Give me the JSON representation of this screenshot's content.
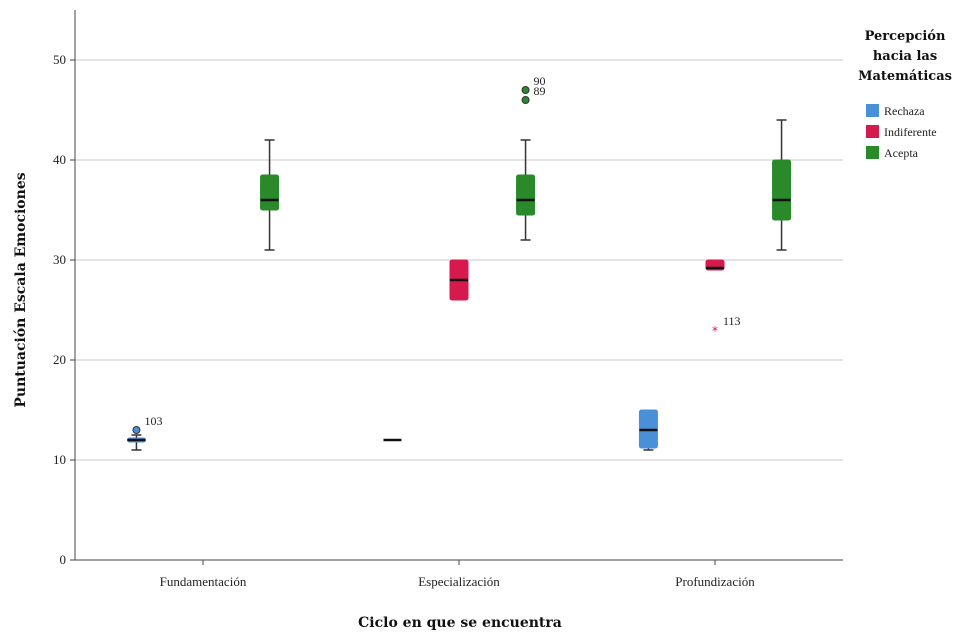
{
  "chart_data": {
    "type": "boxplot",
    "xlabel": "Ciclo en que se encuentra",
    "ylabel": "Puntuación Escala Emociones",
    "ylim": [
      0,
      55
    ],
    "yticks": [
      0,
      10,
      20,
      30,
      40,
      50
    ],
    "grid": "horizontal",
    "legend_position": "right",
    "legend_title_lines": [
      "Percepción",
      "hacia las",
      "Matemáticas"
    ],
    "categories": [
      "Fundamentación",
      "Especialización",
      "Profundización"
    ],
    "series": [
      {
        "name": "Rechaza",
        "color": "#4a90d9",
        "boxes": [
          {
            "category": "Fundamentación",
            "whisker_low": 11,
            "q1": 11.8,
            "median": 12,
            "q3": 12.2,
            "whisker_high": 12.5,
            "outliers": [
              {
                "value": 13,
                "label": "103",
                "marker": "circle"
              }
            ]
          },
          {
            "category": "Especialización",
            "whisker_low": 12,
            "q1": 12,
            "median": 12,
            "q3": 12,
            "whisker_high": 12,
            "outliers": []
          },
          {
            "category": "Profundización",
            "whisker_low": 11,
            "q1": 11.2,
            "median": 13,
            "q3": 15,
            "whisker_high": 15,
            "outliers": []
          }
        ]
      },
      {
        "name": "Indiferente",
        "color": "#d61a4e",
        "boxes": [
          {
            "category": "Fundamentación",
            "empty": true
          },
          {
            "category": "Especialización",
            "whisker_low": 26,
            "q1": 26,
            "median": 28,
            "q3": 30,
            "whisker_high": 30,
            "outliers": []
          },
          {
            "category": "Profundización",
            "whisker_low": 29,
            "q1": 29,
            "median": 29.2,
            "q3": 30,
            "whisker_high": 30,
            "outliers": [
              {
                "value": 23,
                "label": "113",
                "marker": "star"
              }
            ]
          }
        ]
      },
      {
        "name": "Acepta",
        "color": "#2a8a2a",
        "boxes": [
          {
            "category": "Fundamentación",
            "whisker_low": 31,
            "q1": 35,
            "median": 36,
            "q3": 38.5,
            "whisker_high": 42,
            "outliers": []
          },
          {
            "category": "Especialización",
            "whisker_low": 32,
            "q1": 34.5,
            "median": 36,
            "q3": 38.5,
            "whisker_high": 42,
            "outliers": [
              {
                "value": 47,
                "label": "90",
                "marker": "circle"
              },
              {
                "value": 46,
                "label": "89",
                "marker": "circle"
              }
            ]
          },
          {
            "category": "Profundización",
            "whisker_low": 31,
            "q1": 34,
            "median": 36,
            "q3": 40,
            "whisker_high": 44,
            "outliers": []
          }
        ]
      }
    ]
  }
}
